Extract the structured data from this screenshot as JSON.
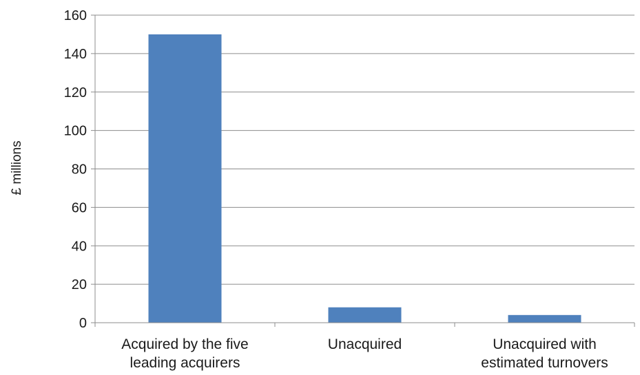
{
  "chart_data": {
    "type": "bar",
    "title": "",
    "xlabel": "",
    "ylabel": "£ millions",
    "categories": [
      [
        "Acquired by the five",
        "leading acquirers"
      ],
      [
        "Unacquired"
      ],
      [
        "Unacquired with",
        "estimated turnovers"
      ]
    ],
    "values": [
      150,
      8,
      4
    ],
    "ylim": [
      0,
      160
    ],
    "yticks": [
      0,
      20,
      40,
      60,
      80,
      100,
      120,
      140,
      160
    ],
    "grid": true,
    "legend": "none",
    "bar_color": "#4f81bd",
    "grid_color": "#8c8c8c"
  }
}
